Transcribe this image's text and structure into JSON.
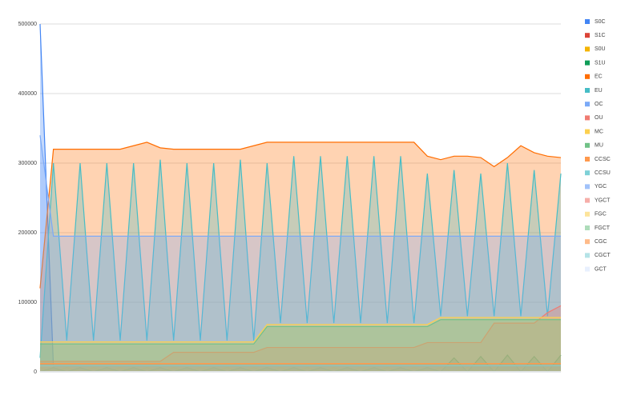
{
  "chart_data": {
    "type": "area",
    "ylim": [
      0,
      500000
    ],
    "yticks": [
      0,
      100000,
      200000,
      300000,
      400000,
      500000
    ],
    "grid": true,
    "legend": "right",
    "series": [
      {
        "name": "S0C",
        "color": "#4285f4",
        "values": [
          500000,
          8000,
          8000,
          8000,
          8000,
          8000,
          8000,
          8000,
          8000,
          8000,
          8000,
          8000,
          8000,
          8000,
          8000,
          8000,
          8000,
          8000,
          8000,
          8000,
          8000,
          8000,
          8000,
          8000,
          8000,
          8000,
          8000,
          8000,
          8000,
          8000,
          8000,
          8000,
          8000,
          8000,
          8000,
          8000,
          8000,
          8000,
          8000,
          8000
        ]
      },
      {
        "name": "S1C",
        "color": "#db4437",
        "values": [
          10000,
          10000,
          10000,
          10000,
          10000,
          10000,
          10000,
          10000,
          10000,
          10000,
          10000,
          10000,
          10000,
          10000,
          10000,
          10000,
          10000,
          10000,
          10000,
          10000,
          10000,
          10000,
          10000,
          10000,
          10000,
          10000,
          10000,
          10000,
          10000,
          10000,
          10000,
          10000,
          10000,
          10000,
          10000,
          10000,
          10000,
          10000,
          10000,
          10000
        ]
      },
      {
        "name": "S0U",
        "color": "#f4b400",
        "values": [
          6000,
          0,
          6000,
          0,
          6000,
          0,
          6000,
          0,
          6000,
          0,
          6000,
          0,
          6000,
          0,
          6000,
          0,
          6000,
          0,
          6000,
          0,
          6000,
          0,
          6000,
          0,
          6000,
          0,
          6000,
          0,
          6000,
          0,
          6000,
          0,
          6000,
          0,
          6000,
          0,
          6000,
          0,
          6000,
          0
        ]
      },
      {
        "name": "S1U",
        "color": "#0f9d58",
        "values": [
          0,
          6000,
          0,
          6000,
          0,
          6000,
          0,
          6000,
          0,
          6000,
          0,
          6000,
          0,
          6000,
          0,
          6000,
          0,
          6000,
          0,
          6000,
          0,
          6000,
          0,
          6000,
          0,
          6000,
          0,
          6000,
          0,
          6000,
          0,
          20000,
          0,
          22000,
          0,
          24000,
          0,
          22000,
          0,
          24000
        ]
      },
      {
        "name": "EC",
        "color": "#ff6d01",
        "values": [
          120000,
          320000,
          320000,
          320000,
          320000,
          320000,
          320000,
          325000,
          330000,
          322000,
          320000,
          320000,
          320000,
          320000,
          320000,
          320000,
          325000,
          330000,
          330000,
          330000,
          330000,
          330000,
          330000,
          330000,
          330000,
          330000,
          330000,
          330000,
          330000,
          310000,
          305000,
          310000,
          310000,
          308000,
          295000,
          308000,
          325000,
          315000,
          310000,
          308000
        ]
      },
      {
        "name": "EU",
        "color": "#46bdc6",
        "values": [
          20000,
          300000,
          45000,
          300000,
          45000,
          300000,
          45000,
          300000,
          45000,
          305000,
          45000,
          300000,
          45000,
          300000,
          45000,
          305000,
          45000,
          300000,
          70000,
          310000,
          70000,
          310000,
          70000,
          310000,
          70000,
          310000,
          70000,
          310000,
          70000,
          285000,
          80000,
          290000,
          80000,
          285000,
          80000,
          300000,
          80000,
          290000,
          80000,
          285000
        ]
      },
      {
        "name": "OC",
        "color": "#7baaf7",
        "values": [
          340000,
          195000,
          195000,
          195000,
          195000,
          195000,
          195000,
          195000,
          195000,
          195000,
          195000,
          195000,
          195000,
          195000,
          195000,
          195000,
          195000,
          195000,
          195000,
          195000,
          195000,
          195000,
          195000,
          195000,
          195000,
          195000,
          195000,
          195000,
          195000,
          195000,
          195000,
          195000,
          195000,
          195000,
          195000,
          195000,
          195000,
          195000,
          195000,
          195000
        ]
      },
      {
        "name": "OU",
        "color": "#f07b72",
        "values": [
          15000,
          15000,
          15000,
          15000,
          15000,
          15000,
          15000,
          15000,
          15000,
          15000,
          28000,
          28000,
          28000,
          28000,
          28000,
          28000,
          28000,
          35000,
          35000,
          35000,
          35000,
          35000,
          35000,
          35000,
          35000,
          35000,
          35000,
          35000,
          35000,
          42000,
          42000,
          42000,
          42000,
          42000,
          70000,
          70000,
          70000,
          70000,
          85000,
          95000
        ]
      },
      {
        "name": "MC",
        "color": "#fcd04f",
        "values": [
          43000,
          43000,
          43000,
          43000,
          43000,
          43000,
          43000,
          43000,
          43000,
          43000,
          43000,
          43000,
          43000,
          43000,
          43000,
          43000,
          43000,
          68000,
          68000,
          68000,
          68000,
          68000,
          68000,
          68000,
          68000,
          68000,
          68000,
          68000,
          68000,
          68000,
          78000,
          78000,
          78000,
          78000,
          78000,
          78000,
          78000,
          78000,
          78000,
          78000
        ]
      },
      {
        "name": "MU",
        "color": "#71c287",
        "values": [
          40000,
          40000,
          40000,
          40000,
          40000,
          40000,
          40000,
          40000,
          40000,
          40000,
          40000,
          40000,
          40000,
          40000,
          40000,
          40000,
          40000,
          65000,
          65000,
          65000,
          65000,
          65000,
          65000,
          65000,
          65000,
          65000,
          65000,
          65000,
          65000,
          65000,
          75000,
          75000,
          75000,
          75000,
          75000,
          75000,
          75000,
          75000,
          75000,
          75000
        ]
      },
      {
        "name": "CCSC",
        "color": "#ff994d",
        "values": [
          12000,
          12000,
          12000,
          12000,
          12000,
          12000,
          12000,
          12000,
          12000,
          12000,
          12000,
          12000,
          12000,
          12000,
          12000,
          12000,
          12000,
          12000,
          12000,
          12000,
          12000,
          12000,
          12000,
          12000,
          12000,
          12000,
          12000,
          12000,
          12000,
          12000,
          12000,
          12000,
          12000,
          12000,
          12000,
          12000,
          12000,
          12000,
          12000,
          12000
        ]
      },
      {
        "name": "CCSU",
        "color": "#7ed1d7",
        "values": [
          9000,
          9000,
          9000,
          9000,
          9000,
          9000,
          9000,
          9000,
          9000,
          9000,
          9000,
          9000,
          9000,
          9000,
          9000,
          9000,
          9000,
          9000,
          9000,
          9000,
          9000,
          9000,
          9000,
          9000,
          9000,
          9000,
          9000,
          9000,
          9000,
          9000,
          9000,
          9000,
          9000,
          9000,
          9000,
          9000,
          9000,
          9000,
          9000,
          9000
        ]
      },
      {
        "name": "YGC",
        "color": "#a1c2fa",
        "values": [
          1,
          2,
          3,
          4,
          5,
          6,
          7,
          8,
          9,
          10,
          11,
          12,
          13,
          14,
          15,
          16,
          17,
          18,
          19,
          20,
          21,
          22,
          23,
          24,
          25,
          26,
          27,
          28,
          29,
          30,
          31,
          32,
          33,
          34,
          35,
          36,
          37,
          38,
          39,
          40
        ]
      },
      {
        "name": "YGCT",
        "color": "#f6aea9",
        "values": [
          1,
          1,
          1,
          1,
          1,
          1,
          1,
          1,
          1,
          1,
          1,
          1,
          1,
          1,
          1,
          1,
          1,
          1,
          1,
          1,
          1,
          1,
          1,
          1,
          1,
          1,
          1,
          1,
          1,
          1,
          1,
          1,
          1,
          1,
          1,
          1,
          1,
          1,
          1,
          1
        ]
      },
      {
        "name": "FGC",
        "color": "#fde49b",
        "values": [
          0,
          0,
          0,
          0,
          0,
          0,
          0,
          0,
          0,
          0,
          0,
          0,
          0,
          0,
          0,
          0,
          0,
          0,
          0,
          0,
          0,
          0,
          0,
          0,
          0,
          0,
          0,
          0,
          0,
          0,
          0,
          0,
          0,
          0,
          0,
          0,
          0,
          0,
          0,
          0
        ]
      },
      {
        "name": "FGCT",
        "color": "#aedcba",
        "values": [
          0,
          0,
          0,
          0,
          0,
          0,
          0,
          0,
          0,
          0,
          0,
          0,
          0,
          0,
          0,
          0,
          0,
          0,
          0,
          0,
          0,
          0,
          0,
          0,
          0,
          0,
          0,
          0,
          0,
          0,
          0,
          0,
          0,
          0,
          0,
          0,
          0,
          0,
          0,
          0
        ]
      },
      {
        "name": "CGC",
        "color": "#ffbb89",
        "values": [
          0,
          0,
          0,
          0,
          0,
          0,
          0,
          0,
          0,
          0,
          0,
          0,
          0,
          0,
          0,
          0,
          0,
          0,
          0,
          0,
          0,
          0,
          0,
          0,
          0,
          0,
          0,
          0,
          0,
          0,
          0,
          0,
          0,
          0,
          0,
          0,
          0,
          0,
          0,
          0
        ]
      },
      {
        "name": "CGCT",
        "color": "#b5e3e7",
        "values": [
          0,
          0,
          0,
          0,
          0,
          0,
          0,
          0,
          0,
          0,
          0,
          0,
          0,
          0,
          0,
          0,
          0,
          0,
          0,
          0,
          0,
          0,
          0,
          0,
          0,
          0,
          0,
          0,
          0,
          0,
          0,
          0,
          0,
          0,
          0,
          0,
          0,
          0,
          0,
          0
        ]
      },
      {
        "name": "GCT",
        "color": "#e8f0fe",
        "values": [
          1,
          1,
          1,
          1,
          1,
          1,
          1,
          1,
          1,
          1,
          1,
          1,
          1,
          1,
          1,
          1,
          1,
          1,
          1,
          1,
          1,
          1,
          1,
          1,
          1,
          1,
          1,
          1,
          1,
          1,
          1,
          1,
          1,
          1,
          1,
          1,
          1,
          1,
          1,
          1
        ]
      }
    ]
  }
}
